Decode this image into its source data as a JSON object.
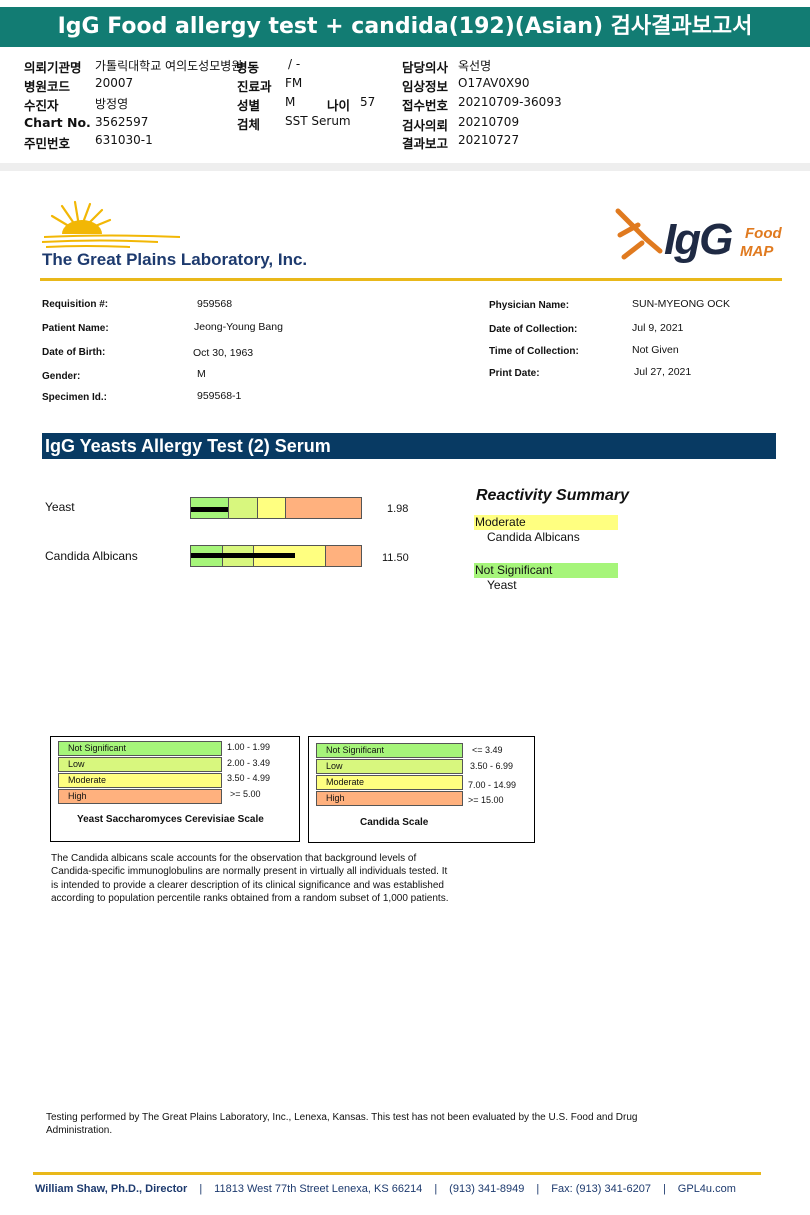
{
  "korean_header": {
    "title": "IgG Food allergy test + candida(192)(Asian) 검사결과보고서",
    "fields": {
      "institution_label": "의뢰기관명",
      "institution_value": "가톨릭대학교 여의도성모병원",
      "ward_label": "병동",
      "ward_value": "/ -",
      "doctor_label": "담당의사",
      "doctor_value": "옥선명",
      "hospital_code_label": "병원코드",
      "hospital_code_value": "20007",
      "department_label": "진료과",
      "department_value": "FM",
      "clinical_info_label": "임상정보",
      "clinical_info_value": "O17AV0X90",
      "patient_label": "수진자",
      "patient_value": "방정영",
      "sex_label": "성별",
      "sex_value": "M",
      "age_label": "나이",
      "age_value": "57",
      "receipt_no_label": "접수번호",
      "receipt_no_value": "20210709-36093",
      "chart_label": "Chart No.",
      "chart_value": "3562597",
      "specimen_label": "검체",
      "specimen_value": "SST Serum",
      "request_date_label": "검사의뢰",
      "request_date_value": "20210709",
      "resident_label": "주민번호",
      "resident_value": "631030-1",
      "report_date_label": "결과보고",
      "report_date_value": "20210727"
    }
  },
  "lab": {
    "name": "The Great Plains Laboratory, Inc.",
    "logo_main": "IgG",
    "logo_food": "Food",
    "logo_map": "MAP",
    "colors": {
      "navy": "#1d3a6e",
      "gold": "#e9b81a",
      "orange": "#e07a1f"
    }
  },
  "patient_info": {
    "left": [
      {
        "label": "Requisition #:",
        "value": "959568"
      },
      {
        "label": "Patient Name:",
        "value": "Jeong-Young Bang"
      },
      {
        "label": "Date of Birth:",
        "value": "Oct 30, 1963"
      },
      {
        "label": "Gender:",
        "value": "M"
      },
      {
        "label": "Specimen Id.:",
        "value": "959568-1"
      }
    ],
    "right": [
      {
        "label": "Physician Name:",
        "value": "SUN-MYEONG OCK"
      },
      {
        "label": "Date of Collection:",
        "value": "Jul 9, 2021"
      },
      {
        "label": "Time of Collection:",
        "value": "Not Given"
      },
      {
        "label": "Print Date:",
        "value": "Jul 27, 2021"
      }
    ]
  },
  "test": {
    "title": "IgG Yeasts Allergy Test (2) Serum",
    "results": [
      {
        "name": "Yeast",
        "value": "1.98",
        "scale": "yeast",
        "level": 1.98
      },
      {
        "name": "Candida Albicans",
        "value": "11.50",
        "scale": "candida",
        "level": 11.5
      }
    ]
  },
  "summary": {
    "title": "Reactivity Summary",
    "groups": [
      {
        "category": "Moderate",
        "items": [
          "Candida Albicans"
        ],
        "color": "#ffff80"
      },
      {
        "category": "Not Significant",
        "items": [
          "Yeast"
        ],
        "color": "#a6f57a"
      }
    ]
  },
  "scales": {
    "yeast": {
      "caption": "Yeast Saccharomyces Cerevisiae Scale",
      "rows": [
        {
          "label": "Not Significant",
          "range": "1.00 - 1.99",
          "color": "#a6f57a",
          "min": 1.0,
          "max": 2.0
        },
        {
          "label": "Low",
          "range": "2.00 - 3.49",
          "color": "#d8f77e",
          "min": 2.0,
          "max": 3.5
        },
        {
          "label": "Moderate",
          "range": "3.50 - 4.99",
          "color": "#ffff80",
          "min": 3.5,
          "max": 5.0
        },
        {
          "label": "High",
          "range": ">= 5.00",
          "color": "#ffb17e",
          "min": 5.0,
          "max": 8.0
        }
      ]
    },
    "candida": {
      "caption": "Candida Scale",
      "rows": [
        {
          "label": "Not Significant",
          "range": "<= 3.49",
          "color": "#a6f57a",
          "min": 0.0,
          "max": 3.5
        },
        {
          "label": "Low",
          "range": "3.50 - 6.99",
          "color": "#d8f77e",
          "min": 3.5,
          "max": 7.0
        },
        {
          "label": "Moderate",
          "range": "7.00 - 14.99",
          "color": "#ffff80",
          "min": 7.0,
          "max": 15.0
        },
        {
          "label": "High",
          "range": ">= 15.00",
          "color": "#ffb17e",
          "min": 15.0,
          "max": 20.0
        }
      ]
    }
  },
  "note": [
    "The Candida albicans scale accounts for the observation that background levels of",
    "Candida-specific immunoglobulins are normally present in virtually all individuals tested. It",
    "is intended to provide a clearer description of its clinical significance and was established",
    "according to population percentile ranks obtained from a random subset of 1,000 patients."
  ],
  "disclaimer": [
    "Testing performed by The Great Plains Laboratory, Inc., Lenexa, Kansas.  This test has not been evaluated by the U.S. Food and Drug",
    "Administration."
  ],
  "footer": {
    "director": "William Shaw, Ph.D., Director",
    "address": "11813 West 77th Street Lenexa, KS 66214",
    "phone": "(913) 341-8949",
    "fax": "Fax: (913) 341-6207",
    "web": "GPL4u.com"
  }
}
